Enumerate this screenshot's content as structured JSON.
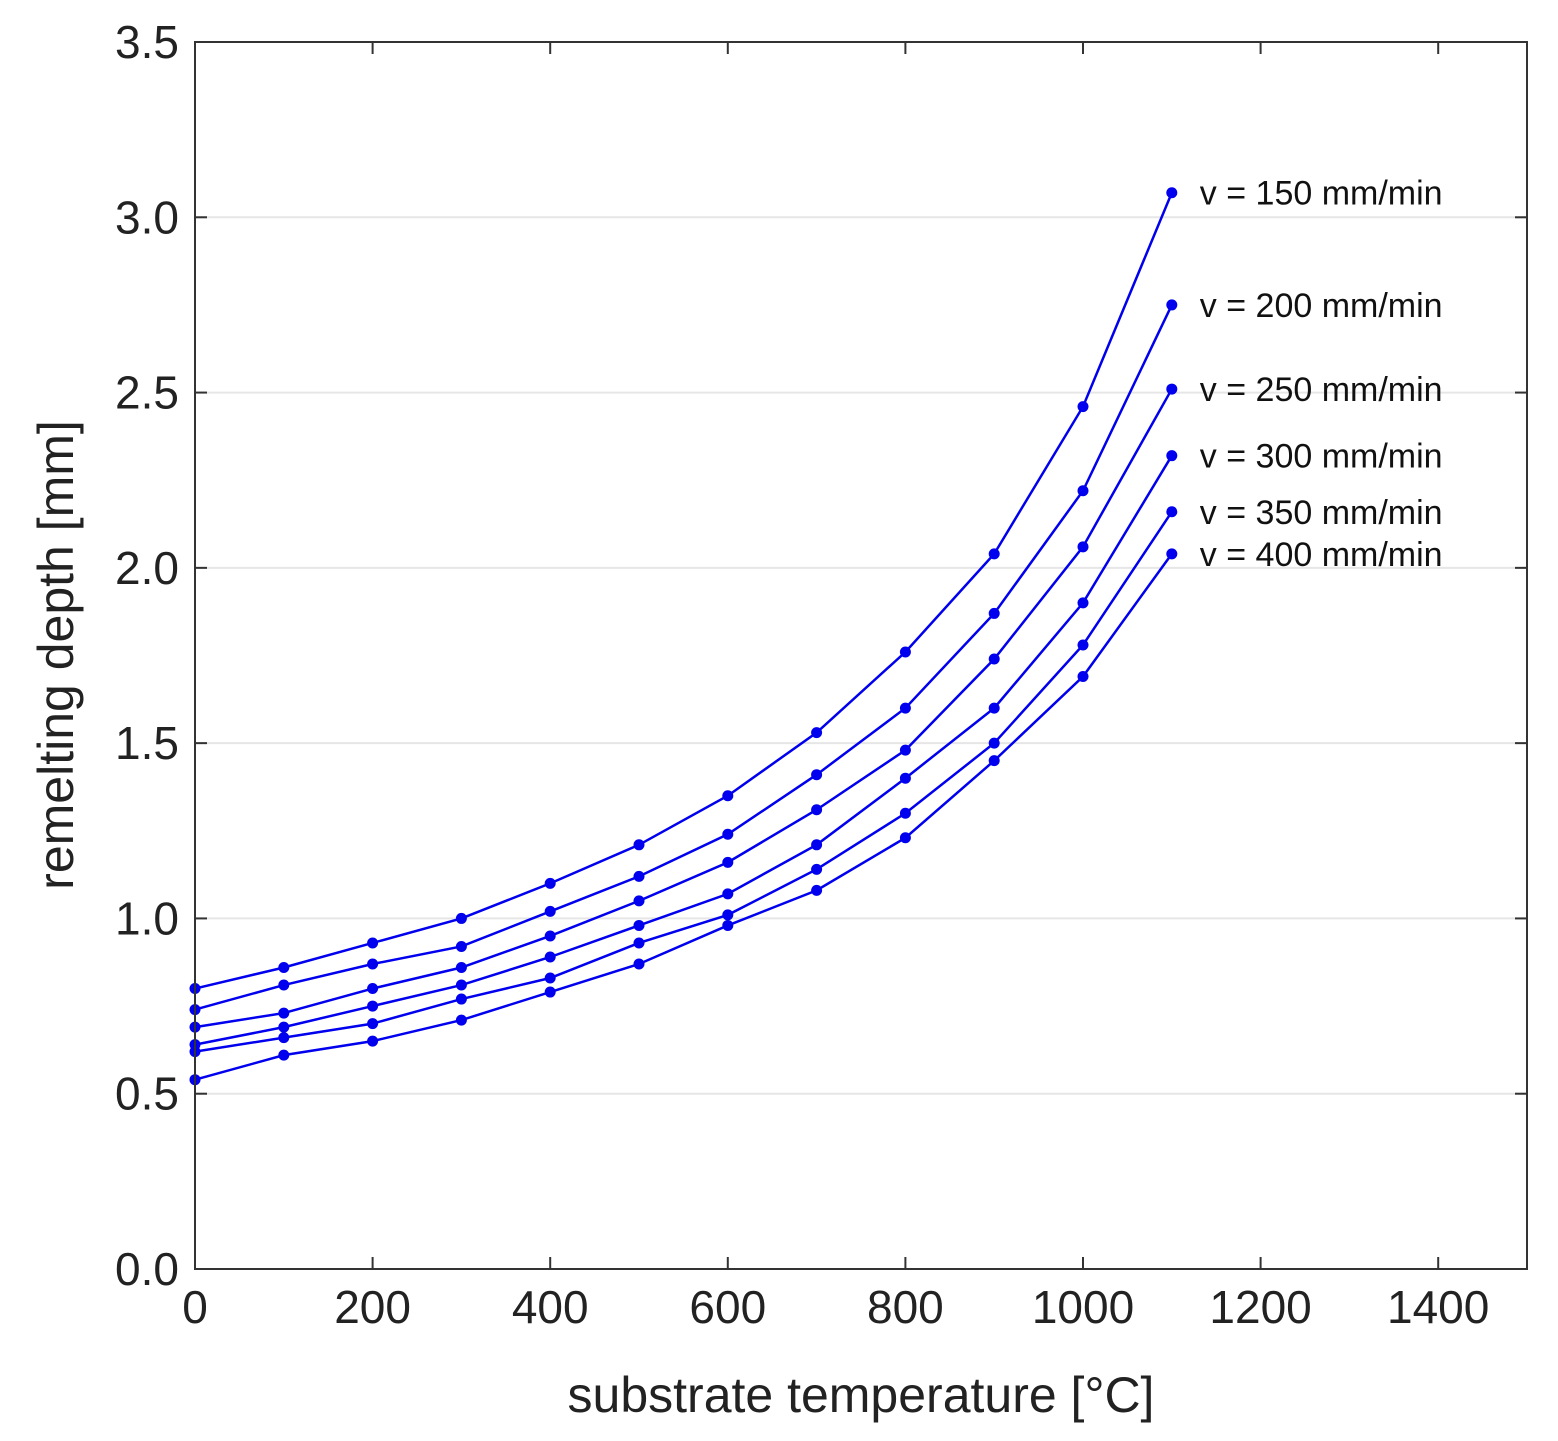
{
  "chart_data": {
    "type": "line",
    "title": "",
    "xlabel": "substrate temperature [°C]",
    "ylabel": "remelting depth [mm]",
    "xlim": [
      0,
      1500
    ],
    "ylim": [
      0,
      3.5
    ],
    "xticks": [
      0,
      200,
      400,
      600,
      800,
      1000,
      1200,
      1400
    ],
    "yticks": [
      0.0,
      0.5,
      1.0,
      1.5,
      2.0,
      2.5,
      3.0,
      3.5
    ],
    "xtick_labels": [
      "0",
      "200",
      "400",
      "600",
      "800",
      "1000",
      "1200",
      "1400"
    ],
    "ytick_labels": [
      "0.0",
      "0.5",
      "1.0",
      "1.5",
      "2.0",
      "2.5",
      "3.0",
      "3.5"
    ],
    "grid": true,
    "legend": "inline labels at right end of each line",
    "x": [
      0,
      100,
      200,
      300,
      400,
      500,
      600,
      700,
      800,
      900,
      1000,
      1100
    ],
    "color": "#0000ee",
    "series": [
      {
        "name": "v = 150 mm/min",
        "values": [
          0.8,
          0.86,
          0.93,
          1.0,
          1.1,
          1.21,
          1.35,
          1.53,
          1.76,
          2.04,
          2.46,
          3.07
        ]
      },
      {
        "name": "v = 200 mm/min",
        "values": [
          0.74,
          0.81,
          0.87,
          0.92,
          1.02,
          1.12,
          1.24,
          1.41,
          1.6,
          1.87,
          2.22,
          2.75
        ]
      },
      {
        "name": "v = 250 mm/min",
        "values": [
          0.69,
          0.73,
          0.8,
          0.86,
          0.95,
          1.05,
          1.16,
          1.31,
          1.48,
          1.74,
          2.06,
          2.51
        ]
      },
      {
        "name": "v = 300 mm/min",
        "values": [
          0.64,
          0.69,
          0.75,
          0.81,
          0.89,
          0.98,
          1.07,
          1.21,
          1.4,
          1.6,
          1.9,
          2.32
        ]
      },
      {
        "name": "v = 350 mm/min",
        "values": [
          0.62,
          0.66,
          0.7,
          0.77,
          0.83,
          0.93,
          1.01,
          1.14,
          1.3,
          1.5,
          1.78,
          2.16
        ]
      },
      {
        "name": "v = 400 mm/min",
        "values": [
          0.54,
          0.61,
          0.65,
          0.71,
          0.79,
          0.87,
          0.98,
          1.08,
          1.23,
          1.45,
          1.69,
          2.04
        ]
      }
    ]
  }
}
